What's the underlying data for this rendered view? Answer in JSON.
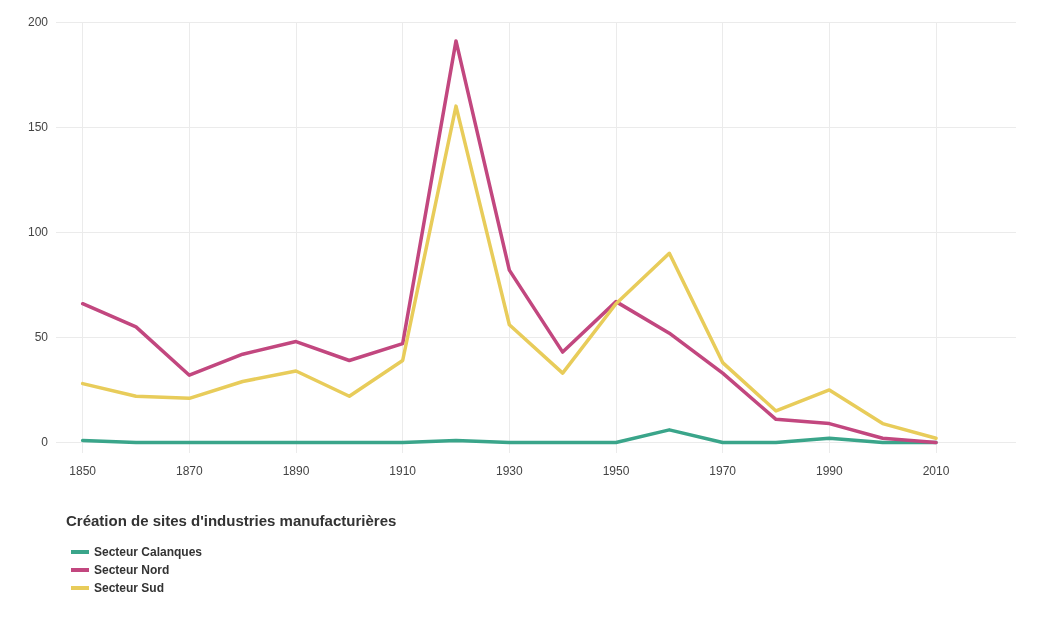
{
  "chart_data": {
    "type": "line",
    "legend_title": "Création de sites d'industries manufacturières",
    "x": [
      1850,
      1860,
      1870,
      1880,
      1890,
      1900,
      1910,
      1920,
      1930,
      1940,
      1950,
      1960,
      1970,
      1980,
      1990,
      2000,
      2010
    ],
    "series": [
      {
        "name": "Secteur Calanques",
        "color": "#3aa58a",
        "values": [
          1,
          0,
          0,
          0,
          0,
          0,
          0,
          1,
          0,
          0,
          0,
          6,
          0,
          0,
          2,
          0,
          0
        ]
      },
      {
        "name": "Secteur Nord",
        "color": "#c2477f",
        "values": [
          66,
          55,
          32,
          42,
          48,
          39,
          47,
          191,
          82,
          43,
          67,
          52,
          33,
          11,
          9,
          2,
          0
        ]
      },
      {
        "name": "Secteur Sud",
        "color": "#e8cc5a",
        "values": [
          28,
          22,
          21,
          29,
          34,
          22,
          39,
          160,
          56,
          33,
          66,
          90,
          38,
          15,
          25,
          9,
          2
        ]
      }
    ],
    "xlim": [
      1845,
      2025
    ],
    "xticks": [
      1850,
      1870,
      1890,
      1910,
      1930,
      1950,
      1970,
      1990,
      2010
    ],
    "ylim": [
      -5,
      200
    ],
    "yticks": [
      0,
      50,
      100,
      150,
      200
    ],
    "grid": true,
    "legend": "bottom left",
    "marker": "none",
    "line_style": "solid"
  }
}
